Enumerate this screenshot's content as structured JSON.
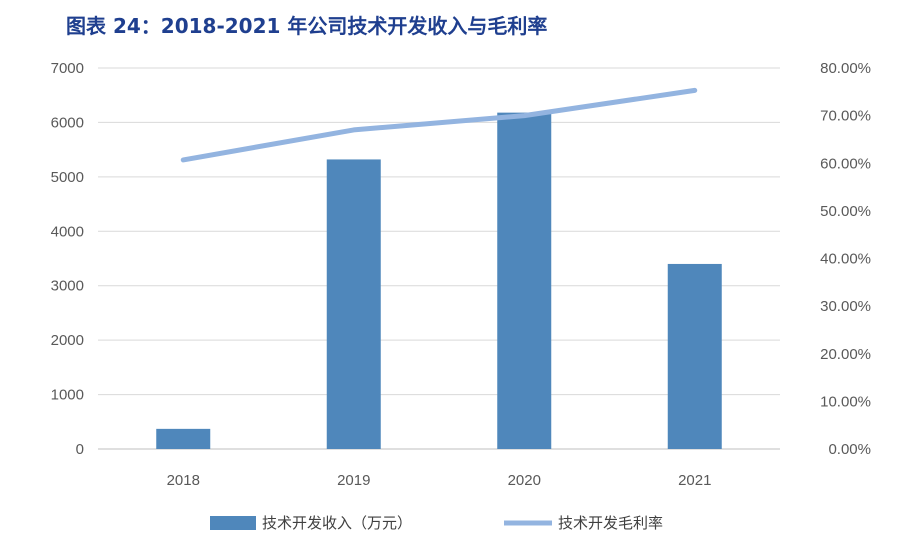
{
  "title": "图表 24：2018-2021 年公司技术开发收入与毛利率",
  "colors": {
    "bar": "#4f87bb",
    "line": "#93b4e0",
    "grid": "#d9d9d9",
    "title": "#1f3f8f"
  },
  "chart_data": {
    "type": "bar",
    "categories": [
      "2018",
      "2019",
      "2020",
      "2021"
    ],
    "series": [
      {
        "name": "技术开发收入（万元）",
        "type": "bar",
        "axis": "left",
        "values": [
          370,
          5320,
          6180,
          3400
        ]
      },
      {
        "name": "技术开发毛利率",
        "type": "line",
        "axis": "right",
        "values": [
          0.607,
          0.67,
          0.7,
          0.753
        ]
      }
    ],
    "y_left": {
      "min": 0,
      "max": 7000,
      "ticks": [
        "0",
        "1000",
        "2000",
        "3000",
        "4000",
        "5000",
        "6000",
        "7000"
      ]
    },
    "y_right": {
      "min": 0,
      "max": 0.8,
      "ticks": [
        "0.00%",
        "10.00%",
        "20.00%",
        "30.00%",
        "40.00%",
        "50.00%",
        "60.00%",
        "70.00%",
        "80.00%"
      ]
    },
    "grid": true,
    "legend": "bottom"
  }
}
